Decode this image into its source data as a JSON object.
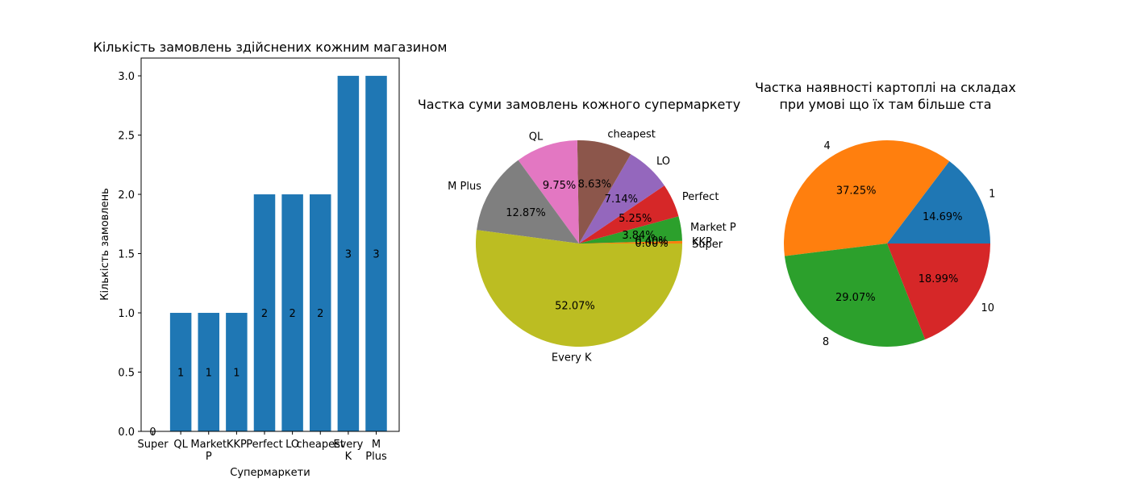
{
  "chart_data": [
    {
      "type": "bar",
      "title": "Кількість замовлень здійснених кожним магазином",
      "xlabel": "Супермаркети",
      "ylabel": "Кількість замовлень",
      "categories": [
        "Super",
        "QL",
        "Market\nP",
        "KKP",
        "Perfect",
        "LO",
        "cheapest",
        "Every\nK",
        "M\nPlus"
      ],
      "values": [
        0,
        1,
        1,
        1,
        2,
        2,
        2,
        3,
        3
      ],
      "value_labels": [
        "0",
        "1",
        "1",
        "1",
        "2",
        "2",
        "2",
        "3",
        "3"
      ],
      "yticks": [
        "0.0",
        "0.5",
        "1.0",
        "1.5",
        "2.0",
        "2.5",
        "3.0"
      ],
      "ylim": [
        0,
        3.15
      ],
      "grid": false,
      "color": "#1f77b4"
    },
    {
      "type": "pie",
      "title": "Частка суми замовлень кожного супермаркету",
      "slices": [
        {
          "label": "Super",
          "value": 0.0,
          "pct": "0.00%",
          "color": "#1f77b4"
        },
        {
          "label": "KKP",
          "value": 0.4,
          "pct": "0.40%",
          "color": "#ff7f0e"
        },
        {
          "label": "Market P",
          "value": 3.84,
          "pct": "3.84%",
          "color": "#2ca02c"
        },
        {
          "label": "Perfect",
          "value": 5.25,
          "pct": "5.25%",
          "color": "#d62728"
        },
        {
          "label": "LO",
          "value": 7.14,
          "pct": "7.14%",
          "color": "#9467bd"
        },
        {
          "label": "cheapest",
          "value": 8.63,
          "pct": "8.63%",
          "color": "#8c564b"
        },
        {
          "label": "QL",
          "value": 9.75,
          "pct": "9.75%",
          "color": "#e377c2"
        },
        {
          "label": "M Plus",
          "value": 12.87,
          "pct": "12.87%",
          "color": "#7f7f7f"
        },
        {
          "label": "Every K",
          "value": 52.07,
          "pct": "52.07%",
          "color": "#bcbd22"
        }
      ]
    },
    {
      "type": "pie",
      "title": "Частка наявності картоплі на складах\nпри умові що їх там більше ста",
      "slices": [
        {
          "label": "1",
          "value": 14.69,
          "pct": "14.69%",
          "color": "#1f77b4"
        },
        {
          "label": "4",
          "value": 37.25,
          "pct": "37.25%",
          "color": "#ff7f0e"
        },
        {
          "label": "8",
          "value": 29.07,
          "pct": "29.07%",
          "color": "#2ca02c"
        },
        {
          "label": "10",
          "value": 18.99,
          "pct": "18.99%",
          "color": "#d62728"
        }
      ]
    }
  ]
}
